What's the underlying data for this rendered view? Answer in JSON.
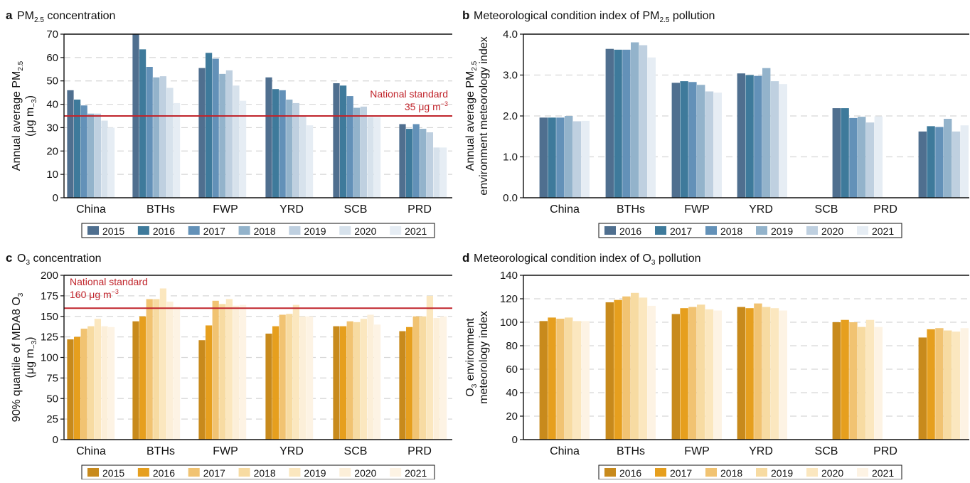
{
  "chart_data": [
    {
      "panel": "a",
      "type": "bar",
      "title": "PM2.5 concentration",
      "title_parts": [
        "PM",
        "2.5",
        " concentration"
      ],
      "ylabel_lines": [
        [
          "Annual average PM",
          "2.5"
        ],
        [
          "(μg m",
          "−3",
          ")"
        ]
      ],
      "ylim": [
        0,
        70
      ],
      "yticks": [
        0,
        10,
        20,
        30,
        40,
        50,
        60,
        70
      ],
      "ytick_labels": [
        "0",
        "10",
        "20",
        "30",
        "40",
        "50",
        "60",
        "70"
      ],
      "categories": [
        "China",
        "BTHs",
        "FWP",
        "YRD",
        "SCB",
        "PRD"
      ],
      "series": [
        {
          "name": "2015",
          "color": "#4f6f8f",
          "values": [
            46,
            70,
            55.5,
            51.5,
            49,
            31.5
          ]
        },
        {
          "name": "2016",
          "color": "#3e7a9b",
          "values": [
            42,
            63.5,
            62,
            46.5,
            48,
            29.5
          ]
        },
        {
          "name": "2017",
          "color": "#6391b8",
          "values": [
            39.5,
            56,
            59.5,
            46,
            43.5,
            31.5
          ]
        },
        {
          "name": "2018",
          "color": "#93b3cb",
          "values": [
            36,
            51.5,
            53,
            42,
            38.5,
            29.5
          ]
        },
        {
          "name": "2019",
          "color": "#bfd0e0",
          "values": [
            36,
            52,
            54.5,
            40.5,
            39,
            28
          ]
        },
        {
          "name": "2020",
          "color": "#d7e2ec",
          "values": [
            33,
            47,
            48,
            35,
            34.5,
            21.5
          ]
        },
        {
          "name": "2021",
          "color": "#e6edf4",
          "values": [
            30,
            40.5,
            41.5,
            31,
            34.5,
            21.5
          ]
        }
      ],
      "reference_line": {
        "value": 35,
        "color": "#c0242b",
        "label_lines": [
          "National standard",
          [
            "35 μg m",
            "−3"
          ]
        ],
        "label_position": "right"
      },
      "grid": true,
      "legend_position": "bottom"
    },
    {
      "panel": "b",
      "type": "bar",
      "title": "Meteorological condition index of PM2.5 pollution",
      "title_parts": [
        "Meteorological condition index of PM",
        "2.5",
        " pollution"
      ],
      "ylabel_lines": [
        [
          "Annual average PM",
          "2.5"
        ],
        [
          "environment meteorology index"
        ]
      ],
      "ylim": [
        0,
        4
      ],
      "yticks": [
        0,
        1,
        2,
        3,
        4
      ],
      "ytick_labels": [
        "0.0",
        "1.0",
        "2.0",
        "3.0",
        "4.0"
      ],
      "categories": [
        "China",
        "BTHs",
        "FWP",
        "YRD",
        "SCB",
        "PRD"
      ],
      "series": [
        {
          "name": "2016",
          "color": "#4f6f8f",
          "values": [
            1.96,
            3.64,
            2.81,
            3.04,
            2.19,
            1.62
          ]
        },
        {
          "name": "2017",
          "color": "#3e7a9b",
          "values": [
            1.96,
            3.62,
            2.85,
            3.0,
            2.19,
            1.75
          ]
        },
        {
          "name": "2018",
          "color": "#6391b8",
          "values": [
            1.96,
            3.62,
            2.83,
            2.98,
            1.95,
            1.73
          ]
        },
        {
          "name": "2019",
          "color": "#93b3cb",
          "values": [
            2.0,
            3.8,
            2.76,
            3.17,
            1.98,
            1.93
          ]
        },
        {
          "name": "2020",
          "color": "#bfd0e0",
          "values": [
            1.87,
            3.73,
            2.6,
            2.85,
            1.84,
            1.62
          ]
        },
        {
          "name": "2021",
          "color": "#e6edf4",
          "values": [
            1.88,
            3.43,
            2.57,
            2.78,
            1.99,
            1.77
          ]
        }
      ],
      "grid": true,
      "legend_position": "bottom"
    },
    {
      "panel": "c",
      "type": "bar",
      "title": "O3 concentration",
      "title_parts": [
        "O",
        "3",
        " concentration"
      ],
      "ylabel_lines": [
        [
          "90% quantile of MDA8 O",
          "3"
        ],
        [
          "(μg m",
          "−3",
          ")"
        ]
      ],
      "ylim": [
        0,
        200
      ],
      "yticks": [
        0,
        25,
        50,
        75,
        100,
        125,
        150,
        175,
        200
      ],
      "ytick_labels": [
        "0",
        "25",
        "50",
        "75",
        "100",
        "125",
        "150",
        "175",
        "200"
      ],
      "categories": [
        "China",
        "BTHs",
        "FWP",
        "YRD",
        "SCB",
        "PRD"
      ],
      "series": [
        {
          "name": "2015",
          "color": "#c88a1c",
          "values": [
            122,
            144,
            121,
            129,
            138,
            132
          ]
        },
        {
          "name": "2016",
          "color": "#e69f1e",
          "values": [
            125,
            150,
            139,
            138,
            138,
            137
          ]
        },
        {
          "name": "2017",
          "color": "#f1c372",
          "values": [
            135,
            171,
            169,
            152,
            144,
            150
          ]
        },
        {
          "name": "2018",
          "color": "#f7dba2",
          "values": [
            138,
            171,
            165,
            153,
            143,
            150
          ]
        },
        {
          "name": "2019",
          "color": "#fbe7bf",
          "values": [
            147,
            184,
            171,
            164,
            147,
            175
          ]
        },
        {
          "name": "2020",
          "color": "#fcefd9",
          "values": [
            138,
            168,
            163,
            150,
            152,
            148
          ]
        },
        {
          "name": "2021",
          "color": "#fdf3e4",
          "values": [
            137,
            162,
            164,
            150,
            140,
            150
          ]
        }
      ],
      "reference_line": {
        "value": 160,
        "color": "#c0242b",
        "label_lines": [
          "National standard",
          [
            "160 μg m",
            "−3"
          ]
        ],
        "label_position": "left"
      },
      "grid": true,
      "legend_position": "bottom"
    },
    {
      "panel": "d",
      "type": "bar",
      "title": "Meteorological condition index of O3 pollution",
      "title_parts": [
        "Meteorological condition index of O",
        "3",
        " pollution"
      ],
      "ylabel_lines": [
        [
          "O",
          "3",
          " environment"
        ],
        [
          "meteorology index"
        ]
      ],
      "ylim": [
        0,
        140
      ],
      "yticks": [
        0,
        20,
        40,
        60,
        80,
        100,
        120,
        140
      ],
      "ytick_labels": [
        "0",
        "20",
        "40",
        "60",
        "80",
        "100",
        "120",
        "140"
      ],
      "categories": [
        "China",
        "BTHs",
        "FWP",
        "YRD",
        "SCB",
        "PRD"
      ],
      "series": [
        {
          "name": "2016",
          "color": "#c88a1c",
          "values": [
            101,
            117,
            107,
            113,
            100,
            87
          ]
        },
        {
          "name": "2017",
          "color": "#e69f1e",
          "values": [
            104,
            119,
            112,
            112,
            102,
            94
          ]
        },
        {
          "name": "2018",
          "color": "#f1c372",
          "values": [
            103,
            122,
            113,
            116,
            100,
            95
          ]
        },
        {
          "name": "2019",
          "color": "#f7dba2",
          "values": [
            104,
            125,
            115,
            113,
            96,
            93
          ]
        },
        {
          "name": "2020",
          "color": "#fbe7bf",
          "values": [
            101,
            121,
            111,
            112,
            102,
            92
          ]
        },
        {
          "name": "2021",
          "color": "#fdf3e4",
          "values": [
            101,
            114,
            110,
            110,
            96,
            95
          ]
        }
      ],
      "grid": true,
      "legend_position": "bottom"
    }
  ]
}
